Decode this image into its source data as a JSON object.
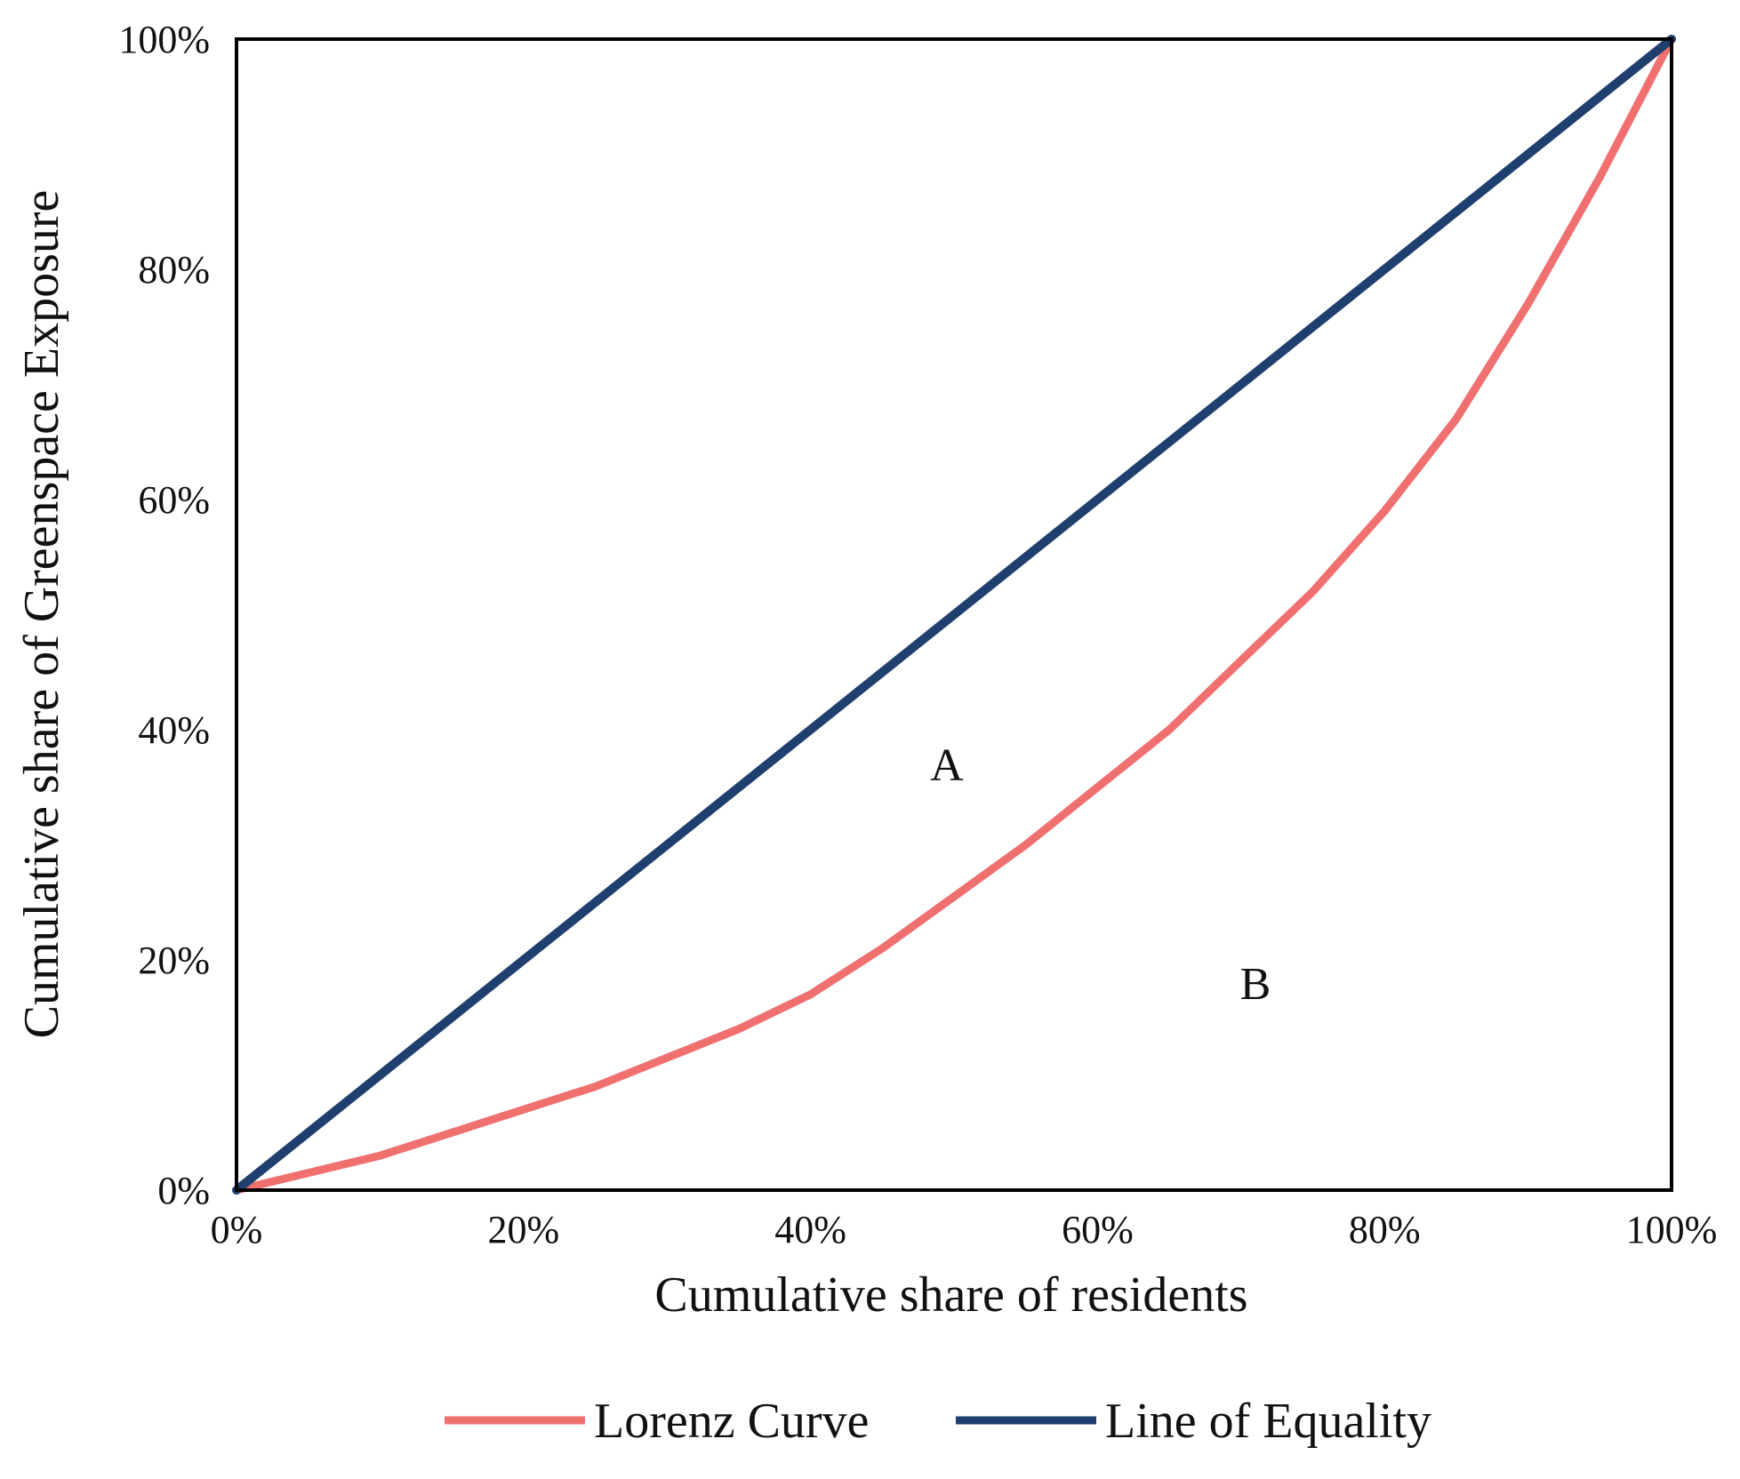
{
  "chart_data": {
    "type": "line",
    "title": "",
    "xlabel": "Cumulative share of  residents",
    "ylabel": "Cumulative share of  Greenspace Exposure",
    "xlim": [
      0,
      100
    ],
    "ylim": [
      0,
      100
    ],
    "x_ticks": [
      "0%",
      "20%",
      "40%",
      "60%",
      "80%",
      "100%"
    ],
    "y_ticks": [
      "0%",
      "20%",
      "40%",
      "60%",
      "80%",
      "100%"
    ],
    "grid": false,
    "legend_position": "bottom",
    "series": [
      {
        "name": "Lorenz Curve",
        "color": "#f07070",
        "x": [
          0,
          5,
          10,
          15,
          20,
          25,
          30,
          35,
          40,
          45,
          50,
          55,
          60,
          65,
          70,
          75,
          80,
          85,
          90,
          95,
          100
        ],
        "y": [
          0,
          1.5,
          3,
          5,
          7,
          9,
          11.5,
          14,
          17,
          21,
          25.5,
          30,
          35,
          40,
          46,
          52,
          59,
          67,
          77,
          88,
          100
        ]
      },
      {
        "name": "Line of Equality",
        "color": "#1f3f6e",
        "x": [
          0,
          100
        ],
        "y": [
          0,
          100
        ]
      }
    ],
    "annotations": [
      {
        "text": "A",
        "x": 49.5,
        "y": 37
      },
      {
        "text": "B",
        "x": 71,
        "y": 18
      }
    ]
  }
}
